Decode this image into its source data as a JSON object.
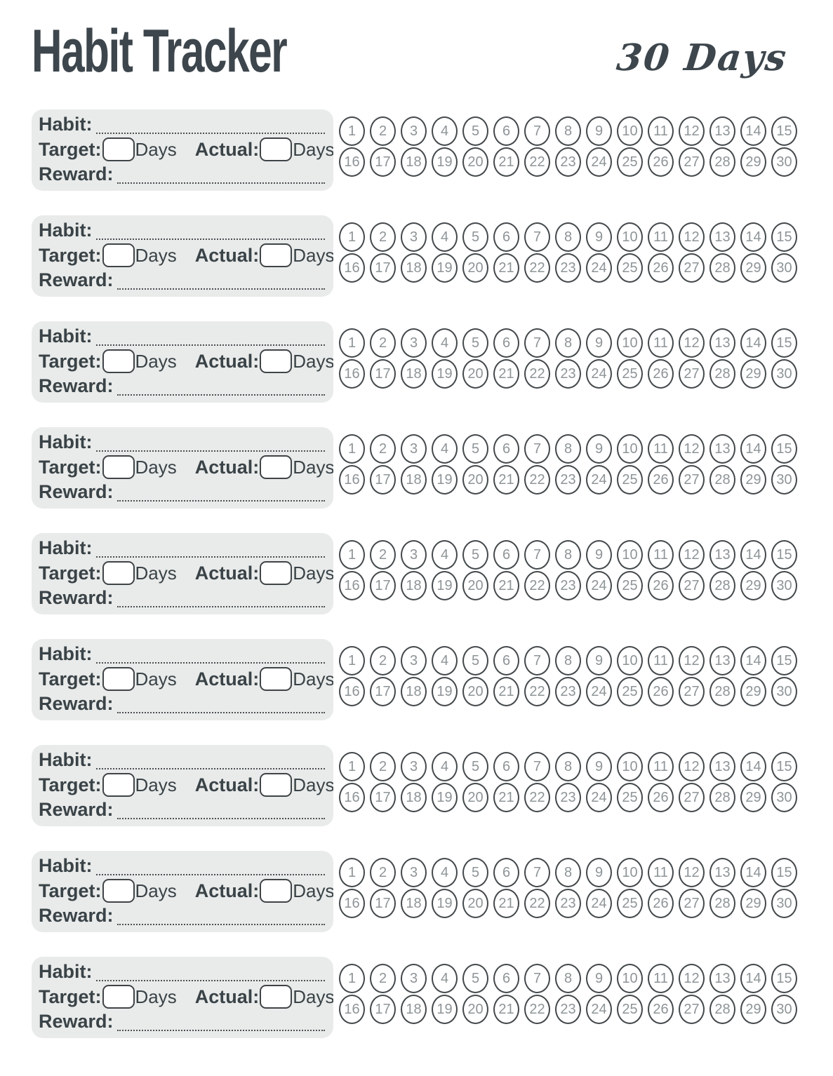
{
  "header": {
    "title": "Habit Tracker",
    "subtitle": "30 Days"
  },
  "tracker": {
    "blocks_count": 9,
    "days_per_row": 15,
    "labels": {
      "habit": "Habit:",
      "target": "Target:",
      "actual": "Actual:",
      "reward": "Reward:",
      "days": "Days"
    },
    "fields": {
      "habit_value": "",
      "target_value": "",
      "actual_value": "",
      "reward_value": ""
    },
    "day_numbers": [
      1,
      2,
      3,
      4,
      5,
      6,
      7,
      8,
      9,
      10,
      11,
      12,
      13,
      14,
      15,
      16,
      17,
      18,
      19,
      20,
      21,
      22,
      23,
      24,
      25,
      26,
      27,
      28,
      29,
      30
    ]
  },
  "colors": {
    "title_color": "#3d464c",
    "card_bg": "#e9ebea",
    "card_text": "#3a4347",
    "box_border": "#3f4447",
    "dotted_line": "#4a4f52",
    "circle_border": "#43484b",
    "circle_number": "#8e9497",
    "page_bg": "#ffffff"
  }
}
